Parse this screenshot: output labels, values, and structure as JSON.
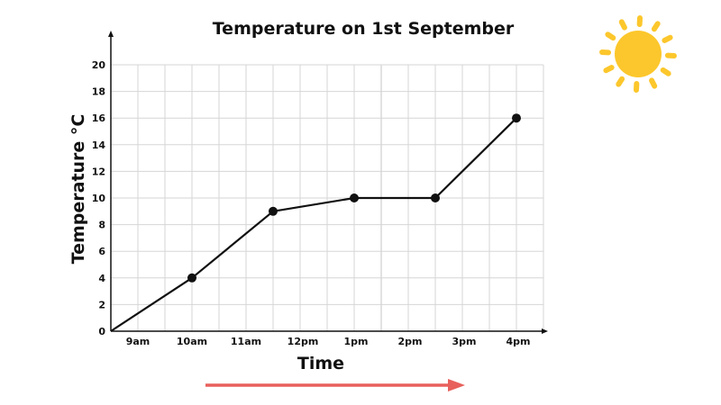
{
  "chart_data": {
    "type": "line",
    "title": "Temperature on 1st September",
    "xlabel": "Time",
    "ylabel": "Temperature °C",
    "categories": [
      "9am",
      "10am",
      "11am",
      "12pm",
      "1pm",
      "2pm",
      "3pm",
      "4pm"
    ],
    "x_tick_labels": [
      "9am",
      "10am",
      "11am",
      "12pm",
      "1pm",
      "2pm",
      "3pm",
      "4pm"
    ],
    "y_tick_labels": [
      "0",
      "2",
      "4",
      "6",
      "8",
      "10",
      "12",
      "14",
      "16",
      "18",
      "20"
    ],
    "ylim": [
      0,
      20
    ],
    "grid": true,
    "legend": null,
    "series": [
      {
        "name": "Temperature",
        "points": [
          {
            "x": "start",
            "y": 0,
            "marker": false
          },
          {
            "x": "10am",
            "y": 4,
            "marker": true
          },
          {
            "x": "11:30am",
            "y": 9,
            "marker": true
          },
          {
            "x": "1pm",
            "y": 10,
            "marker": true
          },
          {
            "x": "2:30pm",
            "y": 10,
            "marker": true
          },
          {
            "x": "4pm",
            "y": 16,
            "marker": true
          }
        ]
      }
    ],
    "annotations": [
      "sun icon",
      "red arrow indicating time progression"
    ]
  },
  "colors": {
    "line": "#111111",
    "grid": "#d6d6d6",
    "arrow": "#e8605c",
    "sun": "#fcc72c"
  }
}
